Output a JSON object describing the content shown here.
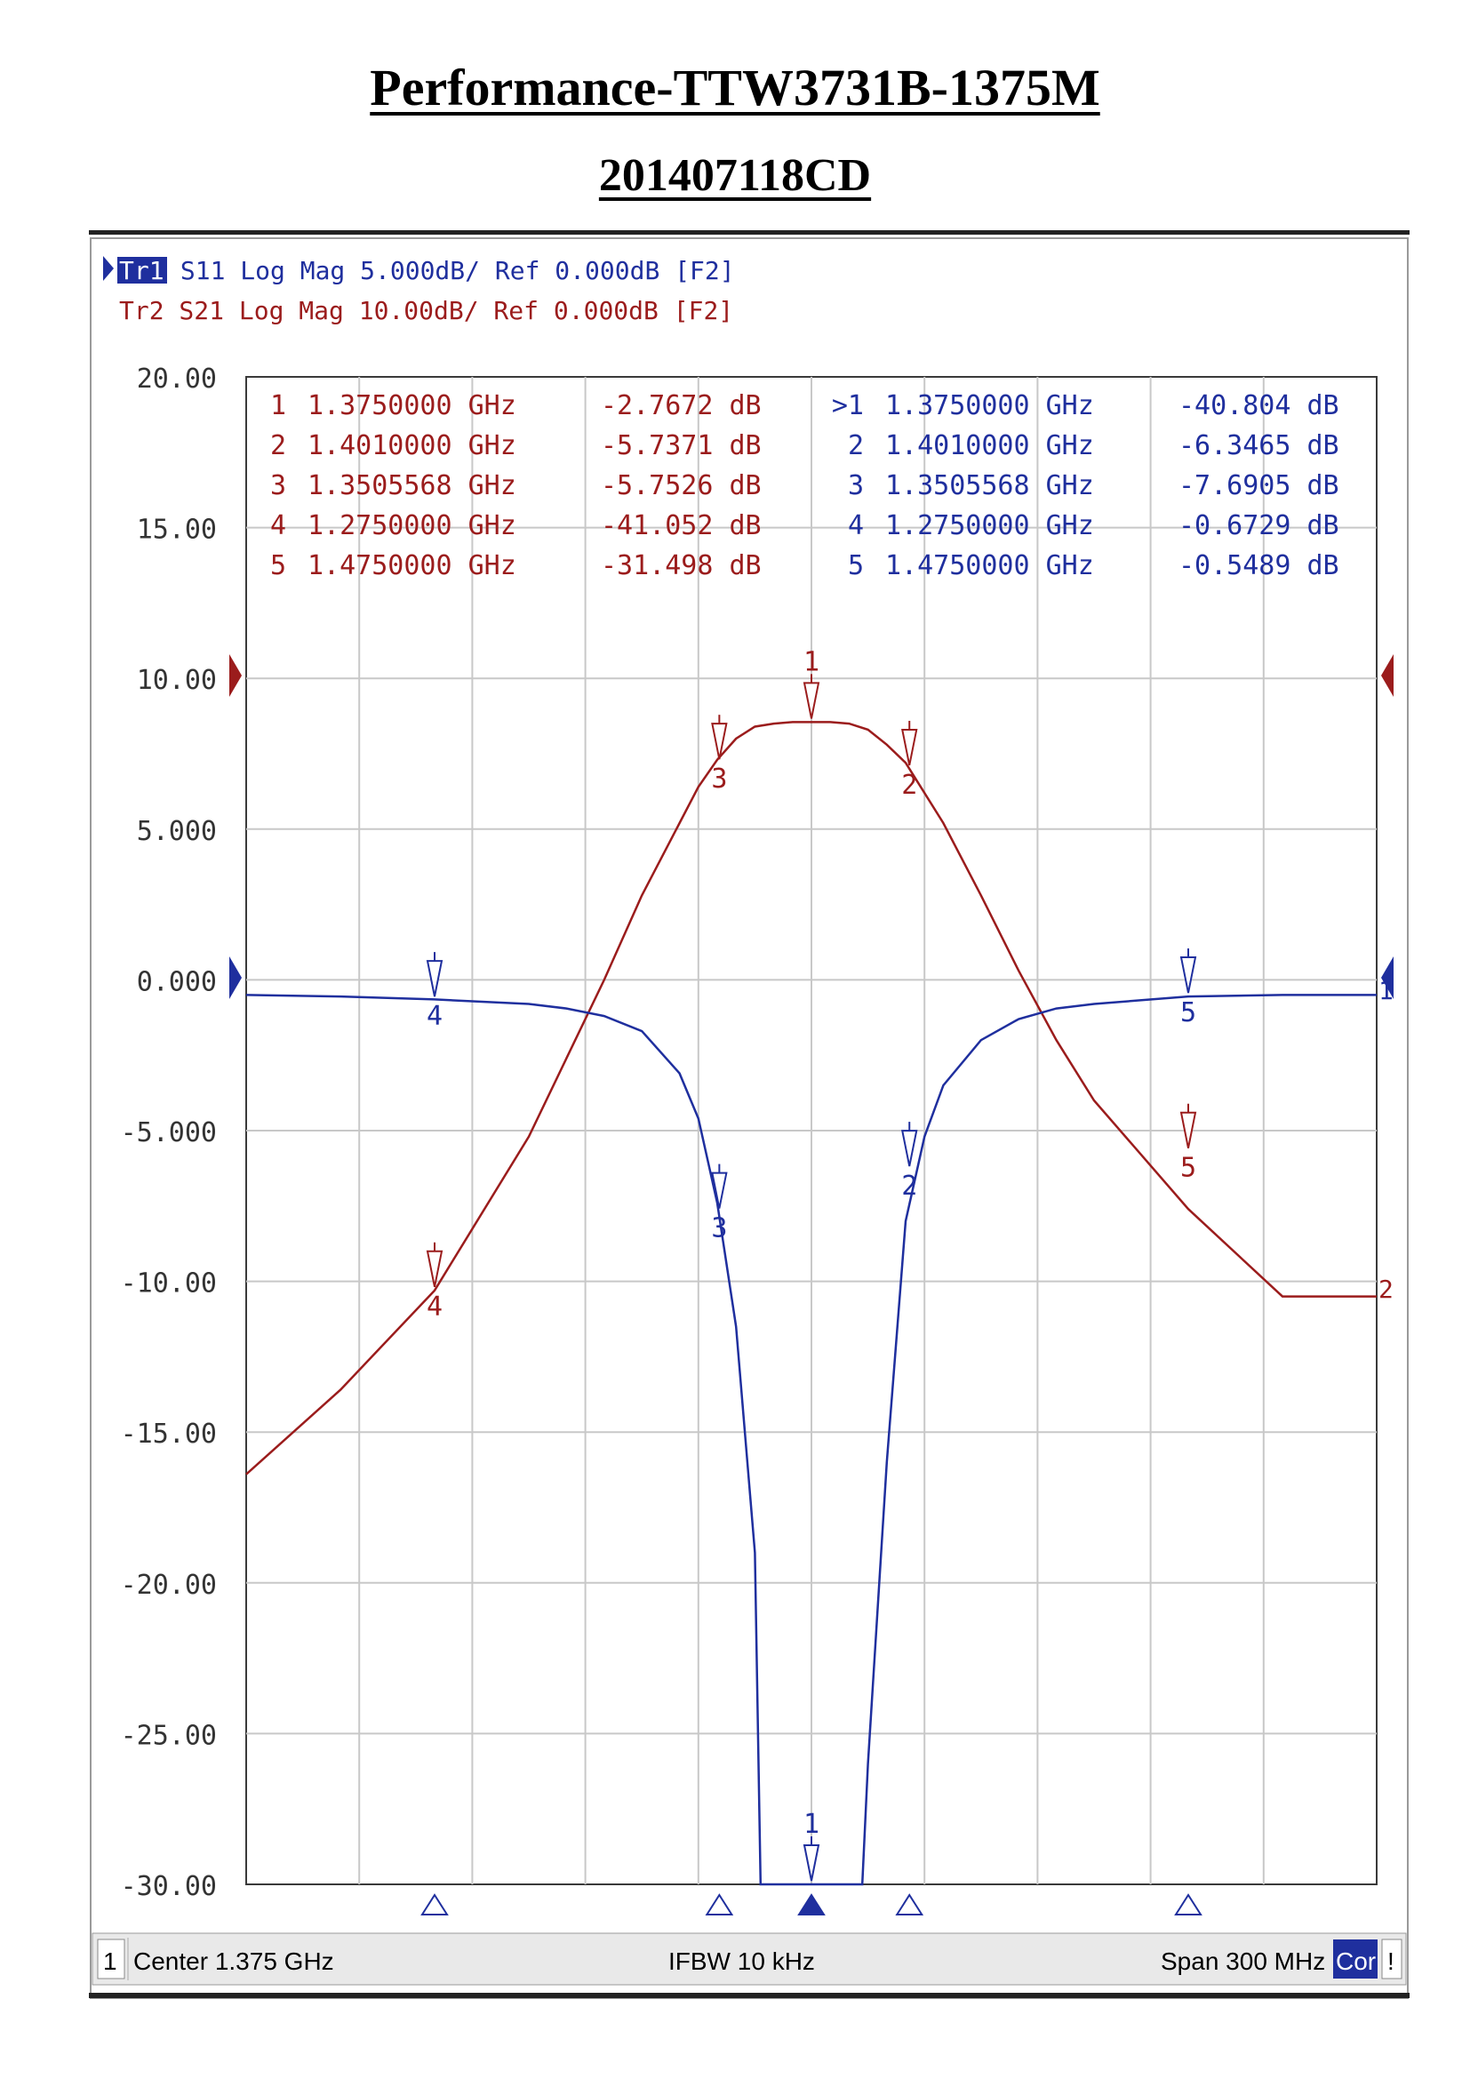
{
  "document": {
    "title": "Performance-TTW3731B-1375M",
    "subtitle": "201407118CD"
  },
  "header": {
    "tr1_tag": "Tr1",
    "tr1_text": " S11 Log Mag 5.000dB/ Ref 0.000dB [F2]",
    "tr2_text": "Tr2 S21 Log Mag 10.00dB/ Ref 0.000dB [F2]"
  },
  "status_bar": {
    "channel": "1",
    "center": "Center 1.375 GHz",
    "ifbw": "IFBW 10 kHz",
    "span": "Span 300 MHz",
    "cor": "Cor",
    "alert": "!"
  },
  "colors": {
    "s11": "#1f2f9e",
    "s21": "#9b1c1c",
    "grid": "#c8c8c8",
    "frame": "#3a3a3a"
  },
  "chart_data": {
    "type": "line",
    "xlim_ghz": [
      1.225,
      1.525
    ],
    "ylim": [
      -30,
      20
    ],
    "y_ticks": [
      "20.00",
      "15.00",
      "10.00",
      "5.000",
      "0.000",
      "-5.000",
      "-10.00",
      "-15.00",
      "-20.00",
      "-25.00",
      "-30.00"
    ],
    "grid": true,
    "series": [
      {
        "name": "S11",
        "x": [
          1.225,
          1.25,
          1.275,
          1.3,
          1.31,
          1.32,
          1.33,
          1.34,
          1.345,
          1.35,
          1.355,
          1.36,
          1.3615,
          1.3885,
          1.39,
          1.395,
          1.4,
          1.405,
          1.41,
          1.42,
          1.43,
          1.44,
          1.45,
          1.475,
          1.5,
          1.525
        ],
        "y": [
          -0.5,
          -0.55,
          -0.65,
          -0.8,
          -0.95,
          -1.2,
          -1.7,
          -3.1,
          -4.6,
          -7.4,
          -11.5,
          -19,
          -30,
          -30,
          -26,
          -16,
          -8,
          -5.2,
          -3.5,
          -2,
          -1.3,
          -0.95,
          -0.8,
          -0.55,
          -0.5,
          -0.5
        ]
      },
      {
        "name": "S21",
        "x": [
          1.225,
          1.25,
          1.275,
          1.3,
          1.31,
          1.32,
          1.33,
          1.34,
          1.345,
          1.35,
          1.355,
          1.36,
          1.365,
          1.37,
          1.375,
          1.38,
          1.385,
          1.39,
          1.395,
          1.4,
          1.41,
          1.42,
          1.43,
          1.44,
          1.45,
          1.475,
          1.5,
          1.525
        ],
        "y": [
          -16.4,
          -13.6,
          -10.3,
          -5.2,
          -2.6,
          0.0,
          2.8,
          5.2,
          6.4,
          7.3,
          8.0,
          8.4,
          8.5,
          8.55,
          8.55,
          8.55,
          8.5,
          8.3,
          7.8,
          7.2,
          5.2,
          2.8,
          0.3,
          -2.0,
          -4.0,
          -7.6,
          -10.5,
          -10.5
        ]
      }
    ],
    "markers_s21": [
      {
        "label": "1",
        "freq": "1.3750000 GHz",
        "value": "-2.7672 dB",
        "x": 1.375,
        "y": 8.55
      },
      {
        "label": "2",
        "freq": "1.4010000 GHz",
        "value": "-5.7371 dB",
        "x": 1.401,
        "y": 7.0
      },
      {
        "label": "3",
        "freq": "1.3505568 GHz",
        "value": "-5.7526 dB",
        "x": 1.3505568,
        "y": 7.2
      },
      {
        "label": "4",
        "freq": "1.2750000 GHz",
        "value": "-41.052 dB",
        "x": 1.275,
        "y": -10.3
      },
      {
        "label": "5",
        "freq": "1.4750000 GHz",
        "value": "-31.498 dB",
        "x": 1.475,
        "y": -5.7
      }
    ],
    "markers_s11": [
      {
        "label": "1",
        "freq": "1.3750000 GHz",
        "value": "-40.804 dB",
        "active": true,
        "x": 1.375,
        "y": -30
      },
      {
        "label": "2",
        "freq": "1.4010000 GHz",
        "value": "-6.3465 dB",
        "x": 1.401,
        "y": -6.3
      },
      {
        "label": "3",
        "freq": "1.3505568 GHz",
        "value": "-7.6905 dB",
        "x": 1.3505568,
        "y": -7.7
      },
      {
        "label": "4",
        "freq": "1.2750000 GHz",
        "value": "-0.6729 dB",
        "x": 1.275,
        "y": -0.67
      },
      {
        "label": "5",
        "freq": "1.4750000 GHz",
        "value": "-0.5489 dB",
        "x": 1.475,
        "y": -0.55
      }
    ],
    "active_marker": ">1",
    "s21_end_label": "2",
    "s11_end_label": "1"
  }
}
